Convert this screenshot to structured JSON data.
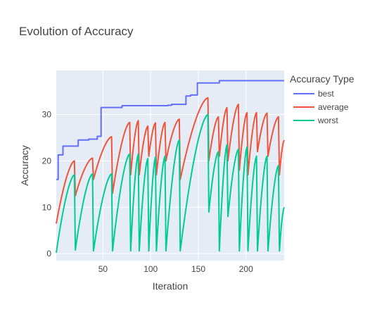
{
  "chart_data": {
    "type": "line",
    "title": "Evolution of Accuracy",
    "xlabel": "Iteration",
    "ylabel": "Accuracy",
    "xlim": [
      1,
      240
    ],
    "ylim": [
      -1.5,
      39.5
    ],
    "x_ticks": [
      50,
      100,
      150,
      200
    ],
    "y_ticks": [
      0,
      10,
      20,
      30
    ],
    "grid": true,
    "plot_background": "#e5ecf6",
    "legend": {
      "title": "Accuracy Type",
      "placement": "right"
    },
    "series": [
      {
        "name": "best",
        "color": "#636efa",
        "steps": [
          [
            1,
            16
          ],
          [
            3,
            21.3
          ],
          [
            8,
            23.2
          ],
          [
            24,
            24.5
          ],
          [
            35,
            24.7
          ],
          [
            44,
            25.3
          ],
          [
            48,
            31.5
          ],
          [
            70,
            31.9
          ],
          [
            118,
            32.0
          ],
          [
            122,
            32.2
          ],
          [
            137,
            34.0
          ],
          [
            142,
            34.2
          ],
          [
            149,
            36.8
          ],
          [
            172,
            37.3
          ],
          [
            240,
            37.3
          ]
        ]
      },
      {
        "name": "average",
        "color": "#ef553b",
        "cycles": [
          [
            1,
            20,
            6.5,
            20.0
          ],
          [
            21,
            39,
            12.5,
            20.6
          ],
          [
            40,
            59,
            16.0,
            25.2
          ],
          [
            60,
            78,
            13.0,
            28.3
          ],
          [
            79,
            87,
            17.0,
            28.7
          ],
          [
            88,
            97,
            17.0,
            27.5
          ],
          [
            98,
            105,
            21.0,
            28.2
          ],
          [
            106,
            115,
            17.0,
            28.3
          ],
          [
            116,
            130,
            20.0,
            29.0
          ],
          [
            131,
            160,
            16.0,
            33.6
          ],
          [
            161,
            171,
            20.0,
            29.5
          ],
          [
            172,
            180,
            21.0,
            31.5
          ],
          [
            181,
            192,
            20.0,
            32.2
          ],
          [
            193,
            201,
            18.0,
            30.4
          ],
          [
            202,
            211,
            17.0,
            30.4
          ],
          [
            212,
            222,
            22.0,
            30.3
          ],
          [
            223,
            234,
            21.0,
            29.5
          ],
          [
            235,
            240,
            17.0,
            24.5
          ]
        ]
      },
      {
        "name": "worst",
        "color": "#00cc96",
        "cycles": [
          [
            1,
            20,
            0.2,
            17.0
          ],
          [
            21,
            39,
            0.8,
            17.2
          ],
          [
            40,
            59,
            0.6,
            17.2
          ],
          [
            60,
            78,
            0.6,
            21.5
          ],
          [
            79,
            87,
            0.6,
            21.5
          ],
          [
            88,
            97,
            0.6,
            20.5
          ],
          [
            98,
            105,
            0.6,
            20.8
          ],
          [
            106,
            115,
            0.6,
            21.0
          ],
          [
            116,
            130,
            0.6,
            24.5
          ],
          [
            131,
            160,
            0.6,
            30.0
          ],
          [
            161,
            171,
            9.0,
            22.0
          ],
          [
            172,
            180,
            0.6,
            23.5
          ],
          [
            181,
            192,
            8.0,
            22.5
          ],
          [
            193,
            201,
            0.6,
            23.0
          ],
          [
            202,
            211,
            0.6,
            21.0
          ],
          [
            212,
            222,
            0.6,
            21.0
          ],
          [
            223,
            234,
            0.6,
            19.0
          ],
          [
            235,
            240,
            0.6,
            10.0
          ]
        ]
      }
    ]
  }
}
